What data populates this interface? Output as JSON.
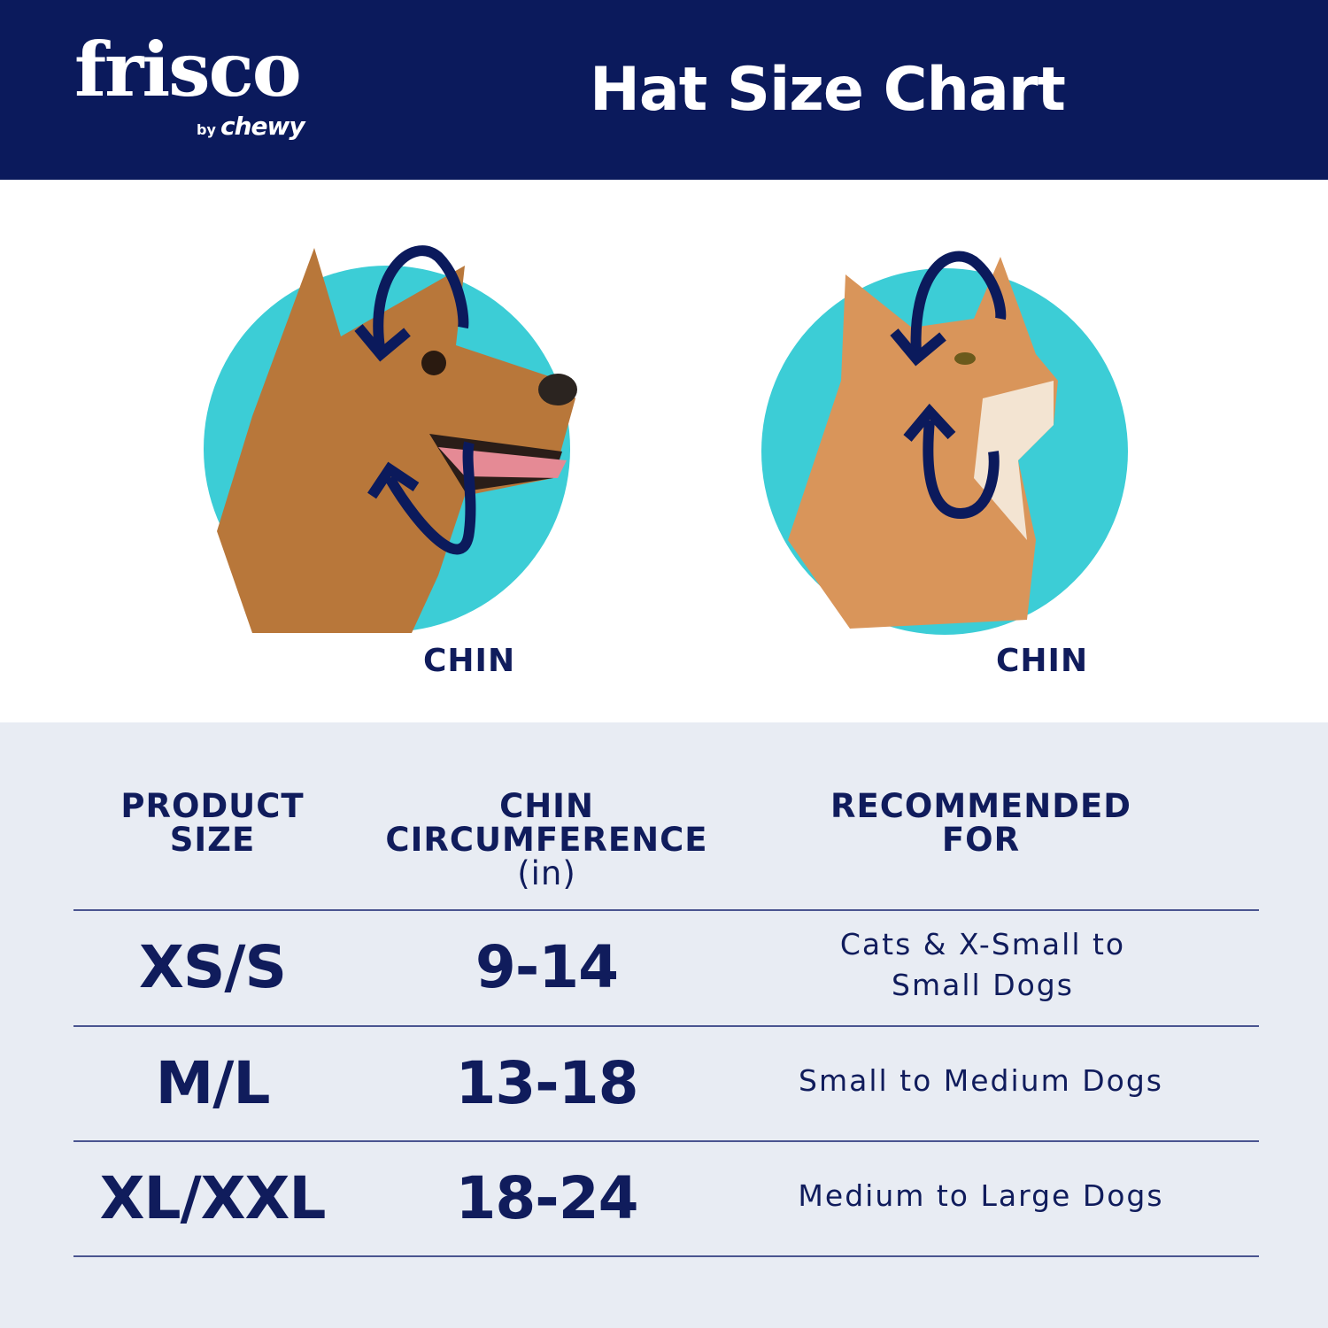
{
  "header": {
    "logo": "frisco by chewy",
    "logo_main": "frisco",
    "logo_by": "by",
    "logo_chewy": "chewy",
    "title": "Hat Size Chart"
  },
  "colors": {
    "navy": "#0b1a5c",
    "teal": "#3ccdd6",
    "table_bg": "#e8ecf3"
  },
  "diagrams": [
    {
      "animal": "dog",
      "label": "CHIN",
      "icon": "measure-arrows-icon"
    },
    {
      "animal": "cat",
      "label": "CHIN",
      "icon": "measure-arrows-icon"
    }
  ],
  "table": {
    "headers": [
      {
        "line1": "PRODUCT",
        "line2": "SIZE",
        "unit": ""
      },
      {
        "line1": "CHIN",
        "line2": "CIRCUMFERENCE",
        "unit": "(in)"
      },
      {
        "line1": "RECOMMENDED",
        "line2": "FOR",
        "unit": ""
      }
    ],
    "rows": [
      {
        "size": "XS/S",
        "chin": "9-14",
        "recommended": "Cats & X-Small to Small Dogs"
      },
      {
        "size": "M/L",
        "chin": "13-18",
        "recommended": "Small to Medium Dogs"
      },
      {
        "size": "XL/XXL",
        "chin": "18-24",
        "recommended": "Medium to Large Dogs"
      }
    ]
  }
}
